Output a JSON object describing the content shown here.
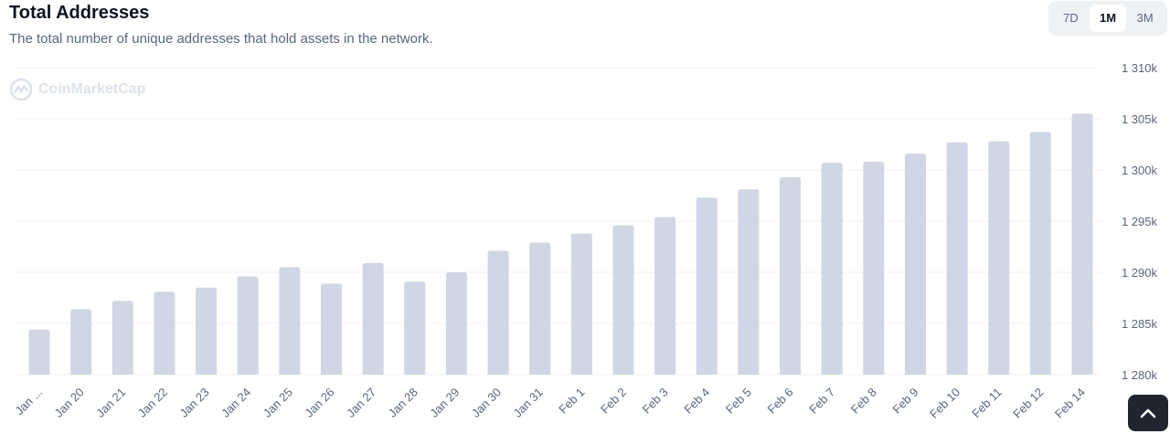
{
  "header": {
    "title": "Total Addresses",
    "subtitle": "The total number of unique addresses that hold assets in the network."
  },
  "range_tabs": [
    {
      "label": "7D",
      "active": false
    },
    {
      "label": "1M",
      "active": true
    },
    {
      "label": "3M",
      "active": false
    }
  ],
  "watermark": {
    "text": "CoinMarketCap"
  },
  "icons": {
    "scroll_top": "chevron-up-icon",
    "watermark_logo": "coinmarketcap-logo"
  },
  "colors": {
    "bar": "#d0d6e3",
    "grid": "#eef1f5",
    "tick_text": "#58667e"
  },
  "chart_data": {
    "type": "bar",
    "categories": [
      "Jan ...",
      "Jan 20",
      "Jan 21",
      "Jan 22",
      "Jan 23",
      "Jan 24",
      "Jan 25",
      "Jan 26",
      "Jan 27",
      "Jan 28",
      "Jan 29",
      "Jan 30",
      "Jan 31",
      "Feb 1",
      "Feb 2",
      "Feb 3",
      "Feb 4",
      "Feb 5",
      "Feb 6",
      "Feb 7",
      "Feb 8",
      "Feb 9",
      "Feb 10",
      "Feb 11",
      "Feb 12",
      "Feb 14"
    ],
    "values": [
      1284400,
      1286400,
      1287200,
      1288100,
      1288500,
      1289600,
      1290500,
      1288900,
      1290900,
      1289100,
      1290000,
      1292100,
      1292900,
      1293800,
      1294600,
      1295400,
      1297300,
      1298100,
      1299300,
      1300700,
      1300800,
      1301600,
      1302700,
      1302800,
      1303700,
      1305500
    ],
    "yticks": [
      1280000,
      1285000,
      1290000,
      1295000,
      1300000,
      1305000,
      1310000
    ],
    "ytick_labels": [
      "1 280k",
      "1 285k",
      "1 290k",
      "1 295k",
      "1 300k",
      "1 305k",
      "1 310k"
    ],
    "ylim": [
      1280000,
      1310000
    ],
    "title": "",
    "xlabel": "",
    "ylabel": "",
    "grid": true,
    "legend": "none"
  }
}
